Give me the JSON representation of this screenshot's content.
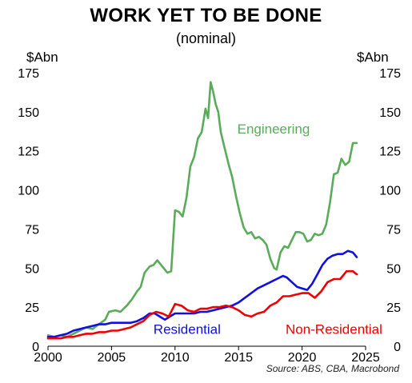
{
  "chart_data": {
    "type": "line",
    "title": "WORK YET TO BE DONE",
    "subtitle": "(nominal)",
    "ylabel_left": "$Abn",
    "ylabel_right": "$Abn",
    "source": "Source: ABS, CBA, Macrobond",
    "xlim": [
      2000,
      2025
    ],
    "ylim": [
      0,
      175
    ],
    "x_ticks": [
      2000,
      2005,
      2010,
      2015,
      2020,
      2025
    ],
    "y_ticks": [
      0,
      25,
      50,
      75,
      100,
      125,
      150,
      175
    ],
    "grid": false,
    "series": [
      {
        "name": "Engineering",
        "color": "#5aab5a",
        "points": [
          [
            2000.0,
            7
          ],
          [
            2000.5,
            6
          ],
          [
            2001.0,
            7
          ],
          [
            2001.5,
            6
          ],
          [
            2002.0,
            8
          ],
          [
            2002.5,
            10
          ],
          [
            2003.0,
            12
          ],
          [
            2003.5,
            11
          ],
          [
            2004.0,
            14
          ],
          [
            2004.5,
            17
          ],
          [
            2004.8,
            22
          ],
          [
            2005.3,
            23
          ],
          [
            2005.7,
            22
          ],
          [
            2006.2,
            26
          ],
          [
            2006.6,
            30
          ],
          [
            2007.0,
            35
          ],
          [
            2007.3,
            38
          ],
          [
            2007.6,
            47
          ],
          [
            2008.0,
            51
          ],
          [
            2008.3,
            52
          ],
          [
            2008.6,
            55
          ],
          [
            2009.0,
            51
          ],
          [
            2009.4,
            47
          ],
          [
            2009.7,
            48
          ],
          [
            2010.0,
            87
          ],
          [
            2010.3,
            86
          ],
          [
            2010.6,
            83
          ],
          [
            2010.9,
            95
          ],
          [
            2011.2,
            115
          ],
          [
            2011.5,
            121
          ],
          [
            2011.8,
            133
          ],
          [
            2012.1,
            137
          ],
          [
            2012.4,
            152
          ],
          [
            2012.6,
            146
          ],
          [
            2012.8,
            169
          ],
          [
            2013.0,
            163
          ],
          [
            2013.2,
            155
          ],
          [
            2013.4,
            150
          ],
          [
            2013.6,
            137
          ],
          [
            2013.9,
            127
          ],
          [
            2014.2,
            117
          ],
          [
            2014.5,
            108
          ],
          [
            2014.8,
            96
          ],
          [
            2015.1,
            85
          ],
          [
            2015.4,
            76
          ],
          [
            2015.7,
            72
          ],
          [
            2016.0,
            73
          ],
          [
            2016.3,
            69
          ],
          [
            2016.6,
            70
          ],
          [
            2016.9,
            68
          ],
          [
            2017.2,
            65
          ],
          [
            2017.5,
            56
          ],
          [
            2017.8,
            50
          ],
          [
            2018.0,
            49
          ],
          [
            2018.3,
            60
          ],
          [
            2018.6,
            64
          ],
          [
            2018.9,
            63
          ],
          [
            2019.2,
            68
          ],
          [
            2019.5,
            73
          ],
          [
            2019.8,
            73
          ],
          [
            2020.1,
            72
          ],
          [
            2020.4,
            67
          ],
          [
            2020.7,
            68
          ],
          [
            2021.0,
            72
          ],
          [
            2021.3,
            71
          ],
          [
            2021.6,
            72
          ],
          [
            2021.9,
            78
          ],
          [
            2022.2,
            92
          ],
          [
            2022.5,
            110
          ],
          [
            2022.8,
            111
          ],
          [
            2023.1,
            120
          ],
          [
            2023.4,
            116
          ],
          [
            2023.7,
            118
          ],
          [
            2024.0,
            130
          ],
          [
            2024.3,
            130
          ]
        ]
      },
      {
        "name": "Residential",
        "color": "#1010e0",
        "points": [
          [
            2000.0,
            6
          ],
          [
            2000.5,
            6
          ],
          [
            2001.0,
            7
          ],
          [
            2001.5,
            8
          ],
          [
            2002.0,
            10
          ],
          [
            2002.5,
            11
          ],
          [
            2003.0,
            12
          ],
          [
            2003.5,
            13
          ],
          [
            2004.0,
            14
          ],
          [
            2004.5,
            14
          ],
          [
            2005.0,
            15
          ],
          [
            2005.5,
            15
          ],
          [
            2006.0,
            15
          ],
          [
            2006.5,
            15
          ],
          [
            2007.0,
            16
          ],
          [
            2007.5,
            18
          ],
          [
            2008.0,
            21
          ],
          [
            2008.4,
            21
          ],
          [
            2008.8,
            19
          ],
          [
            2009.2,
            17
          ],
          [
            2009.6,
            19
          ],
          [
            2010.0,
            21
          ],
          [
            2010.5,
            21
          ],
          [
            2011.0,
            21
          ],
          [
            2011.5,
            21
          ],
          [
            2012.0,
            22
          ],
          [
            2012.5,
            22
          ],
          [
            2013.0,
            23
          ],
          [
            2013.5,
            24
          ],
          [
            2014.0,
            25
          ],
          [
            2014.5,
            26
          ],
          [
            2015.0,
            28
          ],
          [
            2015.5,
            31
          ],
          [
            2016.0,
            34
          ],
          [
            2016.5,
            37
          ],
          [
            2017.0,
            39
          ],
          [
            2017.5,
            41
          ],
          [
            2018.0,
            43
          ],
          [
            2018.5,
            45
          ],
          [
            2018.8,
            44
          ],
          [
            2019.2,
            41
          ],
          [
            2019.6,
            38
          ],
          [
            2020.0,
            37
          ],
          [
            2020.4,
            36
          ],
          [
            2020.8,
            40
          ],
          [
            2021.2,
            46
          ],
          [
            2021.6,
            52
          ],
          [
            2022.0,
            56
          ],
          [
            2022.4,
            58
          ],
          [
            2022.8,
            59
          ],
          [
            2023.2,
            59
          ],
          [
            2023.6,
            61
          ],
          [
            2024.0,
            60
          ],
          [
            2024.3,
            57
          ]
        ]
      },
      {
        "name": "Non-Residential",
        "color": "#ee0000",
        "points": [
          [
            2000.0,
            5
          ],
          [
            2000.5,
            5
          ],
          [
            2001.0,
            5
          ],
          [
            2001.5,
            6
          ],
          [
            2002.0,
            6
          ],
          [
            2002.5,
            7
          ],
          [
            2003.0,
            8
          ],
          [
            2003.5,
            8
          ],
          [
            2004.0,
            9
          ],
          [
            2004.5,
            9
          ],
          [
            2005.0,
            10
          ],
          [
            2005.5,
            10
          ],
          [
            2006.0,
            11
          ],
          [
            2006.5,
            12
          ],
          [
            2007.0,
            14
          ],
          [
            2007.5,
            16
          ],
          [
            2008.0,
            20
          ],
          [
            2008.5,
            22
          ],
          [
            2009.0,
            21
          ],
          [
            2009.5,
            19
          ],
          [
            2010.0,
            27
          ],
          [
            2010.5,
            26
          ],
          [
            2011.0,
            23
          ],
          [
            2011.5,
            22
          ],
          [
            2012.0,
            24
          ],
          [
            2012.5,
            24
          ],
          [
            2013.0,
            25
          ],
          [
            2013.5,
            25
          ],
          [
            2014.0,
            26
          ],
          [
            2014.5,
            25
          ],
          [
            2015.0,
            23
          ],
          [
            2015.5,
            20
          ],
          [
            2016.0,
            19
          ],
          [
            2016.5,
            21
          ],
          [
            2017.0,
            22
          ],
          [
            2017.5,
            26
          ],
          [
            2018.0,
            28
          ],
          [
            2018.5,
            32
          ],
          [
            2019.0,
            32
          ],
          [
            2019.5,
            33
          ],
          [
            2020.0,
            34
          ],
          [
            2020.5,
            34
          ],
          [
            2021.0,
            31
          ],
          [
            2021.5,
            35
          ],
          [
            2022.0,
            41
          ],
          [
            2022.5,
            43
          ],
          [
            2023.0,
            43
          ],
          [
            2023.5,
            48
          ],
          [
            2024.0,
            48
          ],
          [
            2024.3,
            46
          ]
        ]
      }
    ],
    "series_labels": [
      {
        "text": "Engineering",
        "color": "#5aab5a",
        "x": 2014.9,
        "y": 136
      },
      {
        "text": "Residential",
        "color": "#1010e0",
        "x": 2008.3,
        "y": 8
      },
      {
        "text": "Non-Residential",
        "color": "#ee0000",
        "x": 2018.7,
        "y": 8
      }
    ]
  }
}
